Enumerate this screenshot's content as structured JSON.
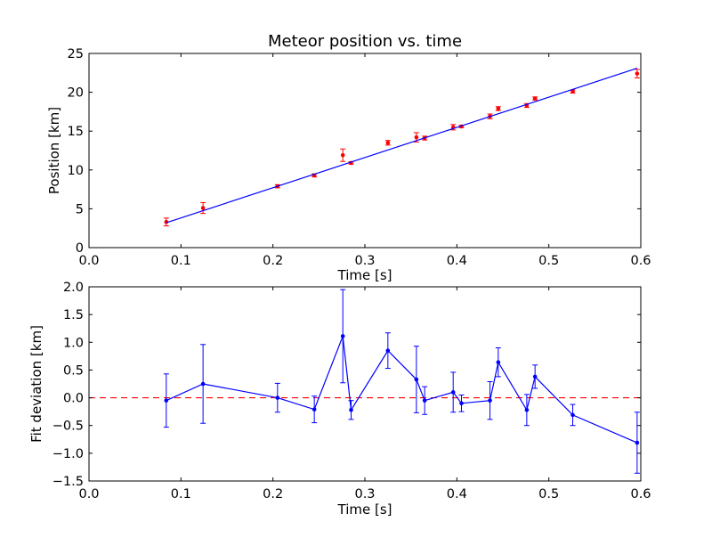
{
  "chart_data": [
    {
      "type": "scatter",
      "title": "Meteor position vs. time",
      "xlabel": "Time [s]",
      "ylabel": "Position [km]",
      "xlim": [
        0.0,
        0.6
      ],
      "ylim": [
        0,
        25
      ],
      "xticks": [
        "0.0",
        "0.1",
        "0.2",
        "0.3",
        "0.4",
        "0.5",
        "0.6"
      ],
      "yticks": [
        "0",
        "5",
        "10",
        "15",
        "20",
        "25"
      ],
      "grid": false,
      "series": [
        {
          "kind": "points-with-error",
          "color": "#ff0000",
          "x": [
            0.084,
            0.124,
            0.205,
            0.245,
            0.276,
            0.285,
            0.325,
            0.356,
            0.365,
            0.396,
            0.405,
            0.436,
            0.445,
            0.476,
            0.485,
            0.526,
            0.596
          ],
          "y": [
            3.3,
            5.1,
            7.9,
            9.3,
            11.9,
            10.9,
            13.5,
            14.2,
            14.1,
            15.5,
            15.6,
            16.9,
            17.9,
            18.3,
            19.2,
            20.1,
            22.4
          ],
          "err": [
            0.5,
            0.7,
            0.2,
            0.2,
            0.8,
            0.15,
            0.3,
            0.6,
            0.25,
            0.35,
            0.15,
            0.3,
            0.25,
            0.25,
            0.2,
            0.2,
            0.55
          ]
        },
        {
          "kind": "fit-line",
          "color": "#0000ff",
          "x": [
            0.084,
            0.596
          ],
          "y": [
            3.2,
            23.1
          ]
        }
      ]
    },
    {
      "type": "line",
      "title": "",
      "xlabel": "Time [s]",
      "ylabel": "Fit deviation [km]",
      "xlim": [
        0.0,
        0.6
      ],
      "ylim": [
        -1.5,
        2.0
      ],
      "xticks": [
        "0.0",
        "0.1",
        "0.2",
        "0.3",
        "0.4",
        "0.5",
        "0.6"
      ],
      "yticks": [
        "−1.5",
        "−1.0",
        "−0.5",
        "0.0",
        "0.5",
        "1.0",
        "1.5",
        "2.0"
      ],
      "grid": false,
      "reference_line": {
        "y": 0.0,
        "color": "#ff0000",
        "style": "dashed"
      },
      "series": [
        {
          "kind": "line-with-error",
          "color": "#0000ff",
          "x": [
            0.084,
            0.124,
            0.205,
            0.245,
            0.276,
            0.285,
            0.325,
            0.356,
            0.365,
            0.396,
            0.405,
            0.436,
            0.445,
            0.476,
            0.485,
            0.526,
            0.596
          ],
          "y": [
            -0.05,
            0.25,
            0.0,
            -0.21,
            1.11,
            -0.22,
            0.85,
            0.33,
            -0.05,
            0.1,
            -0.1,
            -0.05,
            0.64,
            -0.22,
            0.38,
            -0.31,
            -0.81
          ],
          "err": [
            0.48,
            0.71,
            0.26,
            0.24,
            0.84,
            0.17,
            0.32,
            0.6,
            0.25,
            0.36,
            0.15,
            0.34,
            0.26,
            0.28,
            0.21,
            0.19,
            0.55
          ]
        }
      ]
    }
  ]
}
